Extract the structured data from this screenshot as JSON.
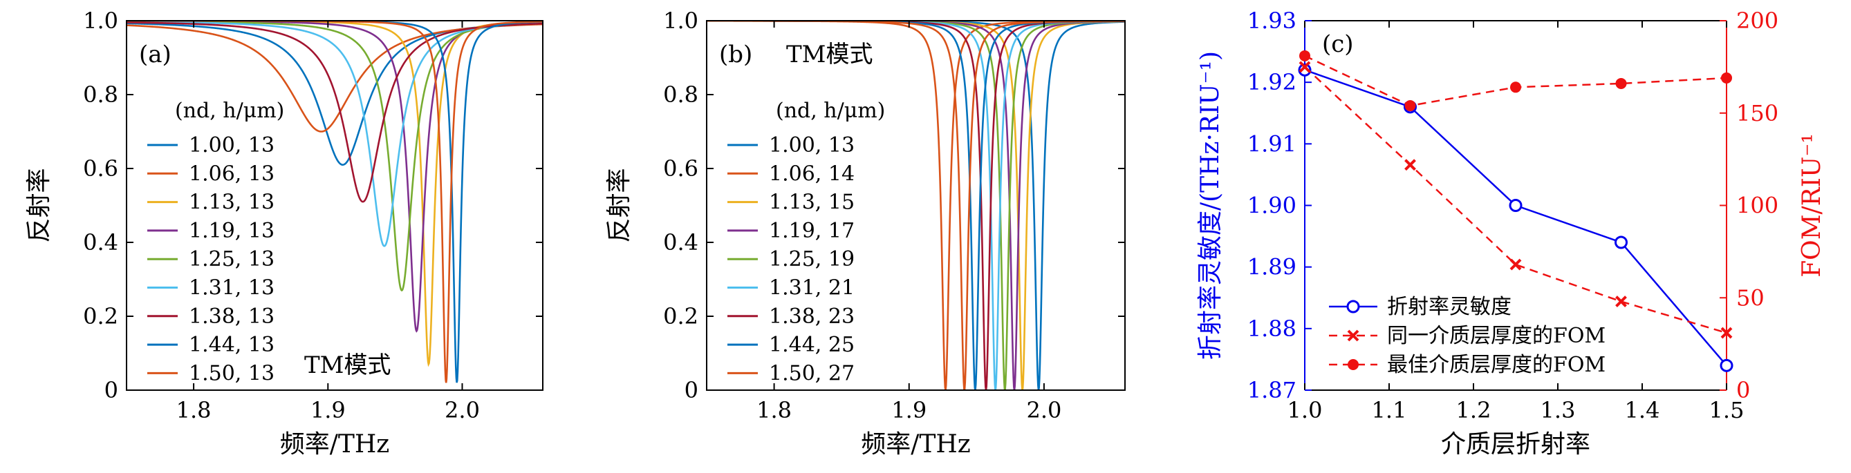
{
  "chart_data": [
    {
      "type": "line",
      "panel_label": "(a)",
      "mode_label": "TM模式",
      "xlabel": "频率/THz",
      "ylabel": "反射率",
      "xlim": [
        1.75,
        2.06
      ],
      "ylim": [
        0,
        1.0
      ],
      "xticks": [
        "1.8",
        "1.9",
        "2.0"
      ],
      "yticks": [
        "0",
        "0.2",
        "0.4",
        "0.6",
        "0.8",
        "1.0"
      ],
      "legend_title": "(nd, h/μm)",
      "legend_position": "left",
      "series": [
        {
          "name": "1.00, 13",
          "color": "#0072bd",
          "center": 1.911,
          "min": 0.61,
          "width": 0.022
        },
        {
          "name": "1.06, 13",
          "color": "#d95319",
          "center": 1.895,
          "min": 0.7,
          "width": 0.03
        },
        {
          "name": "1.13, 13",
          "color": "#edb120",
          "center": 1.975,
          "min": 0.07,
          "width": 0.005
        },
        {
          "name": "1.19, 13",
          "color": "#7e2f8e",
          "center": 1.966,
          "min": 0.16,
          "width": 0.007
        },
        {
          "name": "1.25, 13",
          "color": "#77ac30",
          "center": 1.955,
          "min": 0.27,
          "width": 0.01
        },
        {
          "name": "1.31, 13",
          "color": "#4dbeee",
          "center": 1.942,
          "min": 0.39,
          "width": 0.013
        },
        {
          "name": "1.38, 13",
          "color": "#a2142f",
          "center": 1.926,
          "min": 0.51,
          "width": 0.017
        },
        {
          "name": "1.44, 13",
          "color": "#0072bd",
          "center": 1.996,
          "min": 0.02,
          "width": 0.0035
        },
        {
          "name": "1.50, 13",
          "color": "#d95319",
          "center": 1.988,
          "min": 0.02,
          "width": 0.0035
        }
      ]
    },
    {
      "type": "line",
      "panel_label": "(b)",
      "mode_label": "TM模式",
      "xlabel": "频率/THz",
      "ylabel": "反射率",
      "xlim": [
        1.75,
        2.06
      ],
      "ylim": [
        0,
        1.0
      ],
      "xticks": [
        "1.8",
        "1.9",
        "2.0"
      ],
      "yticks": [
        "0",
        "0.2",
        "0.4",
        "0.6",
        "0.8",
        "1.0"
      ],
      "legend_title": "(nd, h/μm)",
      "legend_position": "left",
      "series": [
        {
          "name": "1.00, 13",
          "color": "#0072bd",
          "center": 1.996,
          "min": 0.0,
          "width": 0.0035
        },
        {
          "name": "1.06, 14",
          "color": "#d95319",
          "center": 1.927,
          "min": 0.0,
          "width": 0.0035
        },
        {
          "name": "1.13, 15",
          "color": "#edb120",
          "center": 1.984,
          "min": 0.0,
          "width": 0.0035
        },
        {
          "name": "1.19, 17",
          "color": "#7e2f8e",
          "center": 1.978,
          "min": 0.0,
          "width": 0.0035
        },
        {
          "name": "1.25, 19",
          "color": "#77ac30",
          "center": 1.971,
          "min": 0.0,
          "width": 0.0035
        },
        {
          "name": "1.31, 21",
          "color": "#4dbeee",
          "center": 1.964,
          "min": 0.0,
          "width": 0.0035
        },
        {
          "name": "1.38, 23",
          "color": "#a2142f",
          "center": 1.957,
          "min": 0.0,
          "width": 0.0035
        },
        {
          "name": "1.44, 25",
          "color": "#0072bd",
          "center": 1.949,
          "min": 0.0,
          "width": 0.0035
        },
        {
          "name": "1.50, 27",
          "color": "#d95319",
          "center": 1.941,
          "min": 0.0,
          "width": 0.0035
        }
      ]
    },
    {
      "type": "line",
      "panel_label": "(c)",
      "xlabel": "介质层折射率",
      "ylabel_left": "折射率灵敏度/(THz·RIU⁻¹)",
      "ylabel_right": "FOM/RIU⁻¹",
      "xlim": [
        1.0,
        1.5
      ],
      "ylim_left": [
        1.87,
        1.93
      ],
      "ylim_right": [
        0,
        200
      ],
      "xticks": [
        "1.0",
        "1.1",
        "1.2",
        "1.3",
        "1.4",
        "1.5"
      ],
      "yticks_left": [
        "1.87",
        "1.88",
        "1.89",
        "1.90",
        "1.91",
        "1.92",
        "1.93"
      ],
      "yticks_right": [
        "0",
        "50",
        "100",
        "150",
        "200"
      ],
      "left_axis_color": "#0000ee",
      "right_axis_color": "#ee1111",
      "legend_position": "bottom-left",
      "series": [
        {
          "name": "折射率灵敏度",
          "axis": "left",
          "color": "#0000ee",
          "marker": "circle",
          "line": "solid",
          "x": [
            1.0,
            1.125,
            1.25,
            1.375,
            1.5
          ],
          "y": [
            1.922,
            1.916,
            1.9,
            1.894,
            1.874
          ]
        },
        {
          "name": "同一介质层厚度的FOM",
          "axis": "right",
          "color": "#ee1111",
          "marker": "x",
          "line": "dashed",
          "x": [
            1.0,
            1.125,
            1.25,
            1.375,
            1.5
          ],
          "y": [
            175,
            122,
            68,
            48,
            31
          ]
        },
        {
          "name": "最佳介质层厚度的FOM",
          "axis": "right",
          "color": "#ee1111",
          "marker": "dot",
          "line": "dashed",
          "x": [
            1.0,
            1.125,
            1.25,
            1.375,
            1.5
          ],
          "y": [
            181,
            154,
            164,
            166,
            169
          ]
        }
      ]
    }
  ]
}
